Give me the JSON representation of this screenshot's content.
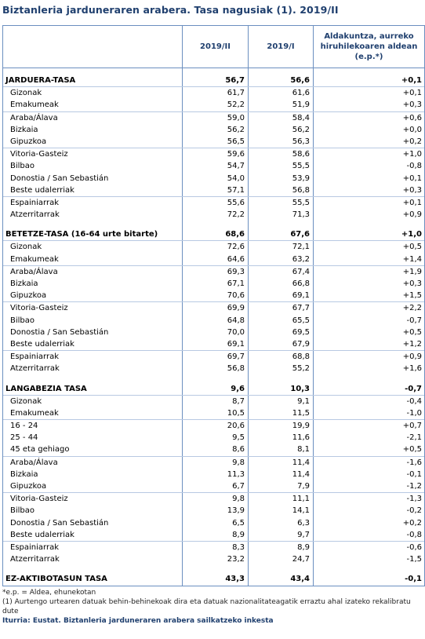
{
  "title": "Biztanleria jarduneraren arabera. Tasa nagusiak (1). 2019/II",
  "columns": [
    "",
    "2019/II",
    "2019/I",
    "Aldakuntza, aurreko hiruhilekoaren aldean (e.p.*)"
  ],
  "sections": [
    {
      "name": "JARDUERA-TASA",
      "v1": "56,7",
      "v2": "56,6",
      "v3": "+0,1",
      "groups": [
        [
          [
            "Gizonak",
            "61,7",
            "61,6",
            "+0,1"
          ],
          [
            "Emakumeak",
            "52,2",
            "51,9",
            "+0,3"
          ]
        ],
        [
          [
            "Araba/Álava",
            "59,0",
            "58,4",
            "+0,6"
          ],
          [
            "Bizkaia",
            "56,2",
            "56,2",
            "+0,0"
          ],
          [
            "Gipuzkoa",
            "56,5",
            "56,3",
            "+0,2"
          ]
        ],
        [
          [
            "Vitoria-Gasteiz",
            "59,6",
            "58,6",
            "+1,0"
          ],
          [
            "Bilbao",
            "54,7",
            "55,5",
            "-0,8"
          ],
          [
            "Donostia / San Sebastián",
            "54,0",
            "53,9",
            "+0,1"
          ],
          [
            "Beste udalerriak",
            "57,1",
            "56,8",
            "+0,3"
          ]
        ],
        [
          [
            "Espainiarrak",
            "55,6",
            "55,5",
            "+0,1"
          ],
          [
            "Atzerritarrak",
            "72,2",
            "71,3",
            "+0,9"
          ]
        ]
      ]
    },
    {
      "name": "BETETZE-TASA (16-64 urte bitarte)",
      "v1": "68,6",
      "v2": "67,6",
      "v3": "+1,0",
      "groups": [
        [
          [
            "Gizonak",
            "72,6",
            "72,1",
            "+0,5"
          ],
          [
            "Emakumeak",
            "64,6",
            "63,2",
            "+1,4"
          ]
        ],
        [
          [
            "Araba/Álava",
            "69,3",
            "67,4",
            "+1,9"
          ],
          [
            "Bizkaia",
            "67,1",
            "66,8",
            "+0,3"
          ],
          [
            "Gipuzkoa",
            "70,6",
            "69,1",
            "+1,5"
          ]
        ],
        [
          [
            "Vitoria-Gasteiz",
            "69,9",
            "67,7",
            "+2,2"
          ],
          [
            "Bilbao",
            "64,8",
            "65,5",
            "-0,7"
          ],
          [
            "Donostia / San Sebastián",
            "70,0",
            "69,5",
            "+0,5"
          ],
          [
            "Beste udalerriak",
            "69,1",
            "67,9",
            "+1,2"
          ]
        ],
        [
          [
            "Espainiarrak",
            "69,7",
            "68,8",
            "+0,9"
          ],
          [
            "Atzerritarrak",
            "56,8",
            "55,2",
            "+1,6"
          ]
        ]
      ]
    },
    {
      "name": "LANGABEZIA TASA",
      "v1": "9,6",
      "v2": "10,3",
      "v3": "-0,7",
      "groups": [
        [
          [
            "Gizonak",
            "8,7",
            "9,1",
            "-0,4"
          ],
          [
            "Emakumeak",
            "10,5",
            "11,5",
            "-1,0"
          ]
        ],
        [
          [
            "16 - 24",
            "20,6",
            "19,9",
            "+0,7"
          ],
          [
            "25 - 44",
            "9,5",
            "11,6",
            "-2,1"
          ],
          [
            "45 eta gehiago",
            "8,6",
            "8,1",
            "+0,5"
          ]
        ],
        [
          [
            "Araba/Álava",
            "9,8",
            "11,4",
            "-1,6"
          ],
          [
            "Bizkaia",
            "11,3",
            "11,4",
            "-0,1"
          ],
          [
            "Gipuzkoa",
            "6,7",
            "7,9",
            "-1,2"
          ]
        ],
        [
          [
            "Vitoria-Gasteiz",
            "9,8",
            "11,1",
            "-1,3"
          ],
          [
            "Bilbao",
            "13,9",
            "14,1",
            "-0,2"
          ],
          [
            "Donostia / San Sebastián",
            "6,5",
            "6,3",
            "+0,2"
          ],
          [
            "Beste udalerriak",
            "8,9",
            "9,7",
            "-0,8"
          ]
        ],
        [
          [
            "Espainiarrak",
            "8,3",
            "8,9",
            "-0,6"
          ],
          [
            "Atzerritarrak",
            "23,2",
            "24,7",
            "-1,5"
          ]
        ]
      ]
    },
    {
      "name": "EZ-AKTIBOTASUN TASA",
      "v1": "43,3",
      "v2": "43,4",
      "v3": "-0,1",
      "groups": []
    }
  ],
  "footnotes": {
    "ep": "*e.p. = Aldea, ehunekotan",
    "note1": "(1) Aurtengo urtearen datuak behin-behinekoak dira eta datuak nazionalitateagatik erraztu ahal izateko rekalibratu dute",
    "source": "Iturria: Eustat. Biztanleria jarduneraren arabera sailkatzeko inkesta"
  }
}
